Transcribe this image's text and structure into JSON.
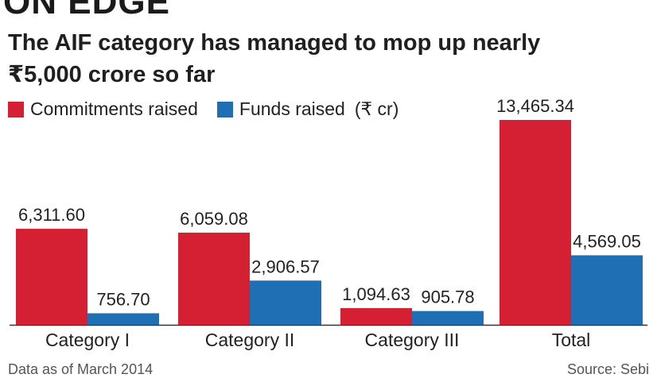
{
  "headline": "ON EDGE",
  "subtitle": "The AIF category has managed to mop up nearly ₹5,000 crore so far",
  "legend": {
    "commitments": "Commitments raised",
    "funds": "Funds raised",
    "unit": "(₹ cr)"
  },
  "colors": {
    "commitments": "#d42032",
    "funds": "#1f6fb5"
  },
  "footer": {
    "left": "Data as of March 2014",
    "right": "Source: Sebi"
  },
  "chart_data": {
    "type": "bar",
    "title": "The AIF category has managed to mop up nearly ₹5,000 crore so far",
    "xlabel": "",
    "ylabel": "₹ cr",
    "categories": [
      "Category I",
      "Category II",
      "Category III",
      "Total"
    ],
    "series": [
      {
        "name": "Commitments raised",
        "values": [
          6311.6,
          6059.08,
          1094.63,
          13465.34
        ],
        "labels": [
          "6,311.60",
          "6,059.08",
          "1,094.63",
          "13,465.34"
        ]
      },
      {
        "name": "Funds raised",
        "values": [
          756.7,
          2906.57,
          905.78,
          4569.05
        ],
        "labels": [
          "756.70",
          "2,906.57",
          "905.78",
          "4,569.05"
        ]
      }
    ],
    "ylim": [
      0,
      14000
    ],
    "legend_position": "top-left",
    "grid": false
  }
}
